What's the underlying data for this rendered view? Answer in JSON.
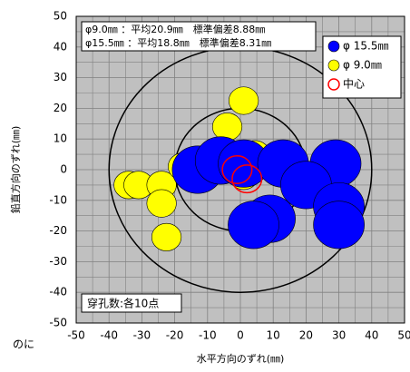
{
  "chart_data": {
    "type": "scatter",
    "x_label": "水平方向のずれ(㎜)",
    "y_label": "鉛直方向のずれ(㎜)",
    "stats": [
      "φ9.0㎜ ：平均20.9㎜　標準偏差8.88㎜",
      "φ15.5㎜ ：平均18.8㎜　標準偏差8.31㎜"
    ],
    "note": "穿孔数:各10点",
    "stray_text": "のに",
    "xlim": [
      -50,
      50
    ],
    "xticks": [
      -50,
      -40,
      -30,
      -20,
      -10,
      0,
      10,
      20,
      30,
      40,
      50
    ],
    "ylim": [
      -50,
      50
    ],
    "yticks": [
      -50,
      -40,
      -30,
      -20,
      -10,
      0,
      10,
      20,
      30,
      40,
      50
    ],
    "grid": true,
    "series": [
      {
        "name": "φ 15.5㎜",
        "color": "#0000ff",
        "size": 15.5,
        "x": [
          -13,
          -6,
          1,
          13,
          29,
          20,
          30,
          30,
          9,
          4
        ],
        "y": [
          0,
          3,
          2,
          2,
          2,
          -5,
          -12,
          -18,
          -16,
          -18
        ]
      },
      {
        "name": "φ 9.0㎜",
        "color": "#ffff00",
        "size": 9.0,
        "x": [
          -34,
          -31,
          -24,
          -24,
          -22.5,
          -17.5,
          -4,
          1,
          4.5,
          1
        ],
        "y": [
          -5,
          -5,
          -5,
          -11,
          -22,
          1,
          14,
          22.5,
          5,
          -2
        ]
      },
      {
        "name": "中心",
        "color": "#ff0000",
        "size": 9.0,
        "hollow": true,
        "x": [
          -1,
          2
        ],
        "y": [
          0,
          -3
        ]
      }
    ]
  }
}
